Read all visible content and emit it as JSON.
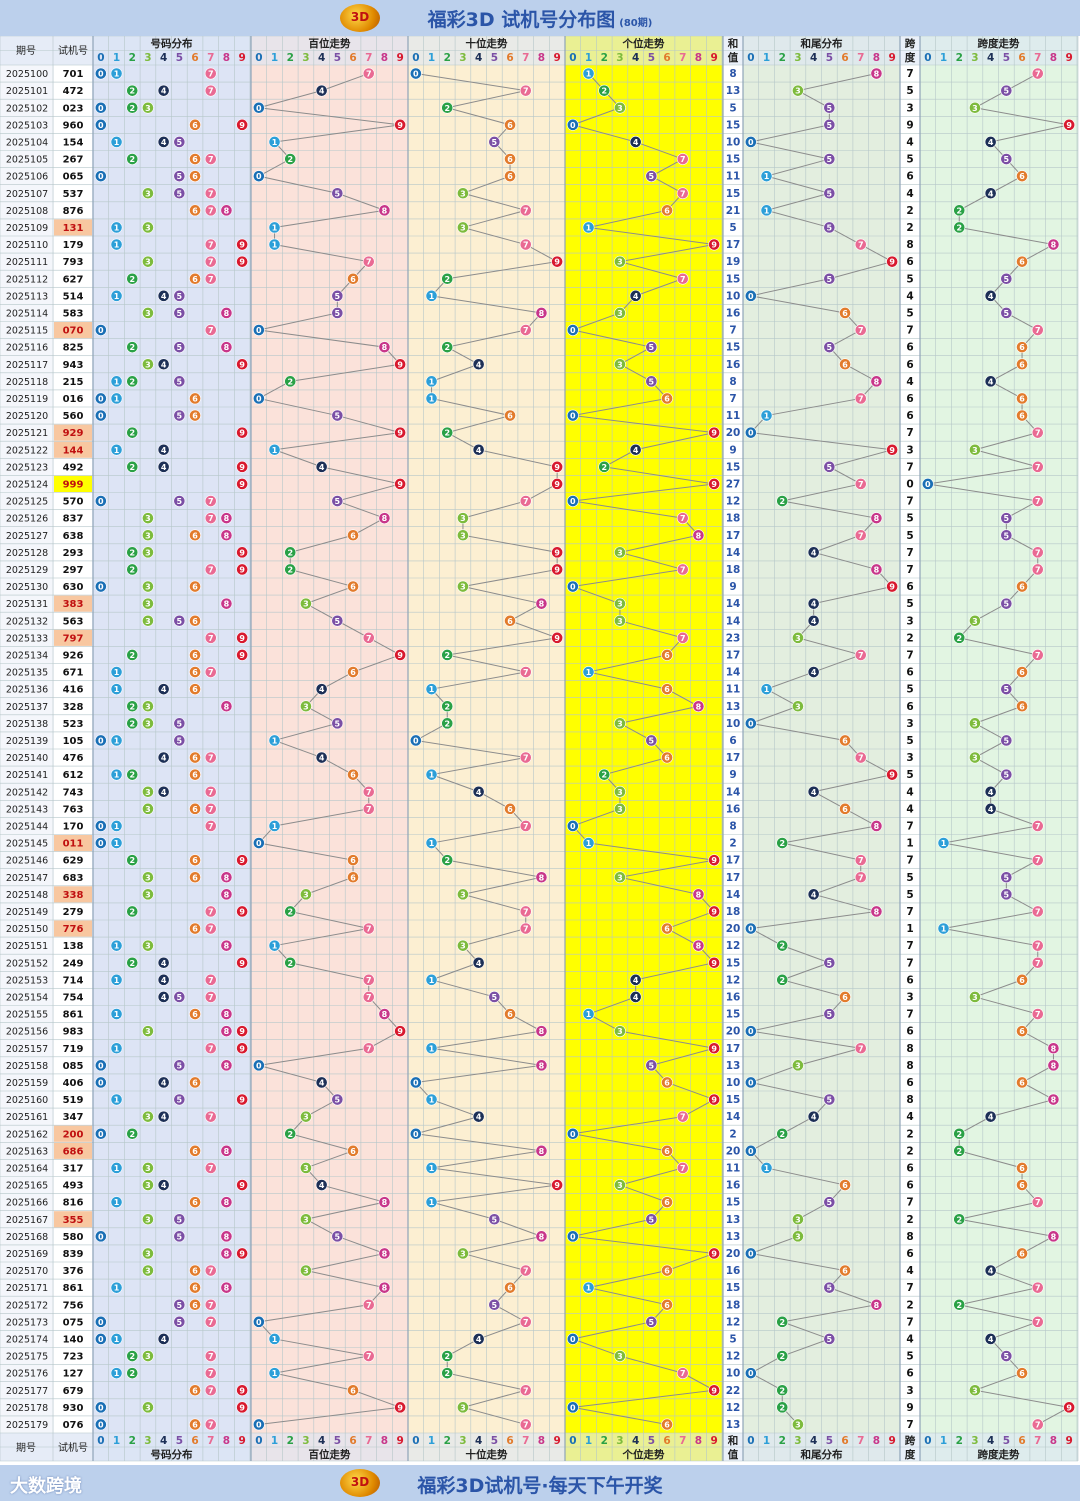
{
  "header": {
    "title": "福彩3D 试机号分布图",
    "subtitle": "(80期)",
    "logo_text": "3D"
  },
  "footer": {
    "slogan": "福彩3D试机号·每天下午开奖",
    "brand": "大数跨境"
  },
  "columns": {
    "period": "期号",
    "number": "试机号",
    "dist": "号码分布",
    "hundreds": "百位走势",
    "tens": "十位走势",
    "units": "个位走势",
    "sum_top": "和",
    "sum_bottom": "值",
    "tail": "和尾分布",
    "span_top": "跨",
    "span_bottom": "度",
    "span_trend": "跨度走势",
    "digits": [
      "0",
      "1",
      "2",
      "3",
      "4",
      "5",
      "6",
      "7",
      "8",
      "9"
    ]
  },
  "colors": {
    "digit_colors": [
      "#1a6fb5",
      "#2c9fd8",
      "#2aa146",
      "#7dbb3c",
      "#1c2f56",
      "#7b4fa5",
      "#e27b2c",
      "#e96a93",
      "#c8368a",
      "#d8192e"
    ],
    "dist_bg": "#dde4f5",
    "hundreds_bg": "#fbe2da",
    "tens_bg": "#fcefd2",
    "units_bg": "#ffff00",
    "tail_bg": "#e3eedf",
    "span_bg": "#e2f5e2",
    "grid_line": "#b6c7c9",
    "header_text": "#2b55a8",
    "highlight_group": "#f8c7a0",
    "highlight_triple": "#ffff00"
  },
  "chart_data": {
    "type": "table",
    "periods": [
      "2025100",
      "2025101",
      "2025102",
      "2025103",
      "2025104",
      "2025105",
      "2025106",
      "2025107",
      "2025108",
      "2025109",
      "2025110",
      "2025111",
      "2025112",
      "2025113",
      "2025114",
      "2025115",
      "2025116",
      "2025117",
      "2025118",
      "2025119",
      "2025120",
      "2025121",
      "2025122",
      "2025123",
      "2025124",
      "2025125",
      "2025126",
      "2025127",
      "2025128",
      "2025129",
      "2025130",
      "2025131",
      "2025132",
      "2025133",
      "2025134",
      "2025135",
      "2025136",
      "2025137",
      "2025138",
      "2025139",
      "2025140",
      "2025141",
      "2025142",
      "2025143",
      "2025144",
      "2025145",
      "2025146",
      "2025147",
      "2025148",
      "2025149",
      "2025150",
      "2025151",
      "2025152",
      "2025153",
      "2025154",
      "2025155",
      "2025156",
      "2025157",
      "2025158",
      "2025159",
      "2025160",
      "2025161",
      "2025162",
      "2025163",
      "2025164",
      "2025165",
      "2025166",
      "2025167",
      "2025168",
      "2025169",
      "2025170",
      "2025171",
      "2025172",
      "2025173",
      "2025174",
      "2025175",
      "2025176",
      "2025177",
      "2025178",
      "2025179"
    ],
    "numbers": [
      "701",
      "472",
      "023",
      "960",
      "154",
      "267",
      "065",
      "537",
      "876",
      "131",
      "179",
      "793",
      "627",
      "514",
      "583",
      "070",
      "825",
      "943",
      "215",
      "016",
      "560",
      "929",
      "144",
      "492",
      "999",
      "570",
      "837",
      "638",
      "293",
      "297",
      "630",
      "383",
      "563",
      "797",
      "926",
      "671",
      "416",
      "328",
      "523",
      "105",
      "476",
      "612",
      "743",
      "763",
      "170",
      "011",
      "629",
      "683",
      "338",
      "279",
      "776",
      "138",
      "249",
      "714",
      "754",
      "861",
      "983",
      "719",
      "085",
      "406",
      "519",
      "347",
      "200",
      "686",
      "317",
      "493",
      "816",
      "355",
      "580",
      "839",
      "376",
      "861",
      "756",
      "075",
      "140",
      "723",
      "127",
      "679",
      "930",
      "076"
    ],
    "sums": [
      8,
      13,
      5,
      15,
      10,
      15,
      11,
      15,
      21,
      5,
      17,
      19,
      15,
      10,
      16,
      7,
      15,
      16,
      8,
      7,
      11,
      20,
      9,
      15,
      27,
      12,
      18,
      17,
      14,
      18,
      9,
      14,
      14,
      23,
      17,
      14,
      11,
      13,
      10,
      6,
      17,
      9,
      14,
      16,
      8,
      2,
      17,
      17,
      14,
      18,
      20,
      12,
      15,
      12,
      16,
      15,
      20,
      17,
      13,
      10,
      15,
      14,
      2,
      20,
      11,
      16,
      15,
      13,
      13,
      20,
      16,
      15,
      18,
      12,
      5,
      12,
      10,
      22,
      12,
      13
    ],
    "spans": [
      7,
      5,
      3,
      9,
      4,
      5,
      6,
      4,
      2,
      2,
      8,
      6,
      5,
      4,
      5,
      7,
      6,
      6,
      4,
      6,
      6,
      7,
      3,
      7,
      0,
      7,
      5,
      5,
      7,
      7,
      6,
      5,
      3,
      2,
      7,
      6,
      5,
      6,
      3,
      5,
      3,
      5,
      4,
      4,
      7,
      1,
      7,
      5,
      5,
      7,
      1,
      7,
      7,
      6,
      3,
      7,
      6,
      8,
      8,
      6,
      8,
      4,
      2,
      2,
      6,
      6,
      7,
      2,
      8,
      6,
      4,
      7,
      2,
      7,
      4,
      5,
      6,
      3,
      9,
      7
    ]
  }
}
